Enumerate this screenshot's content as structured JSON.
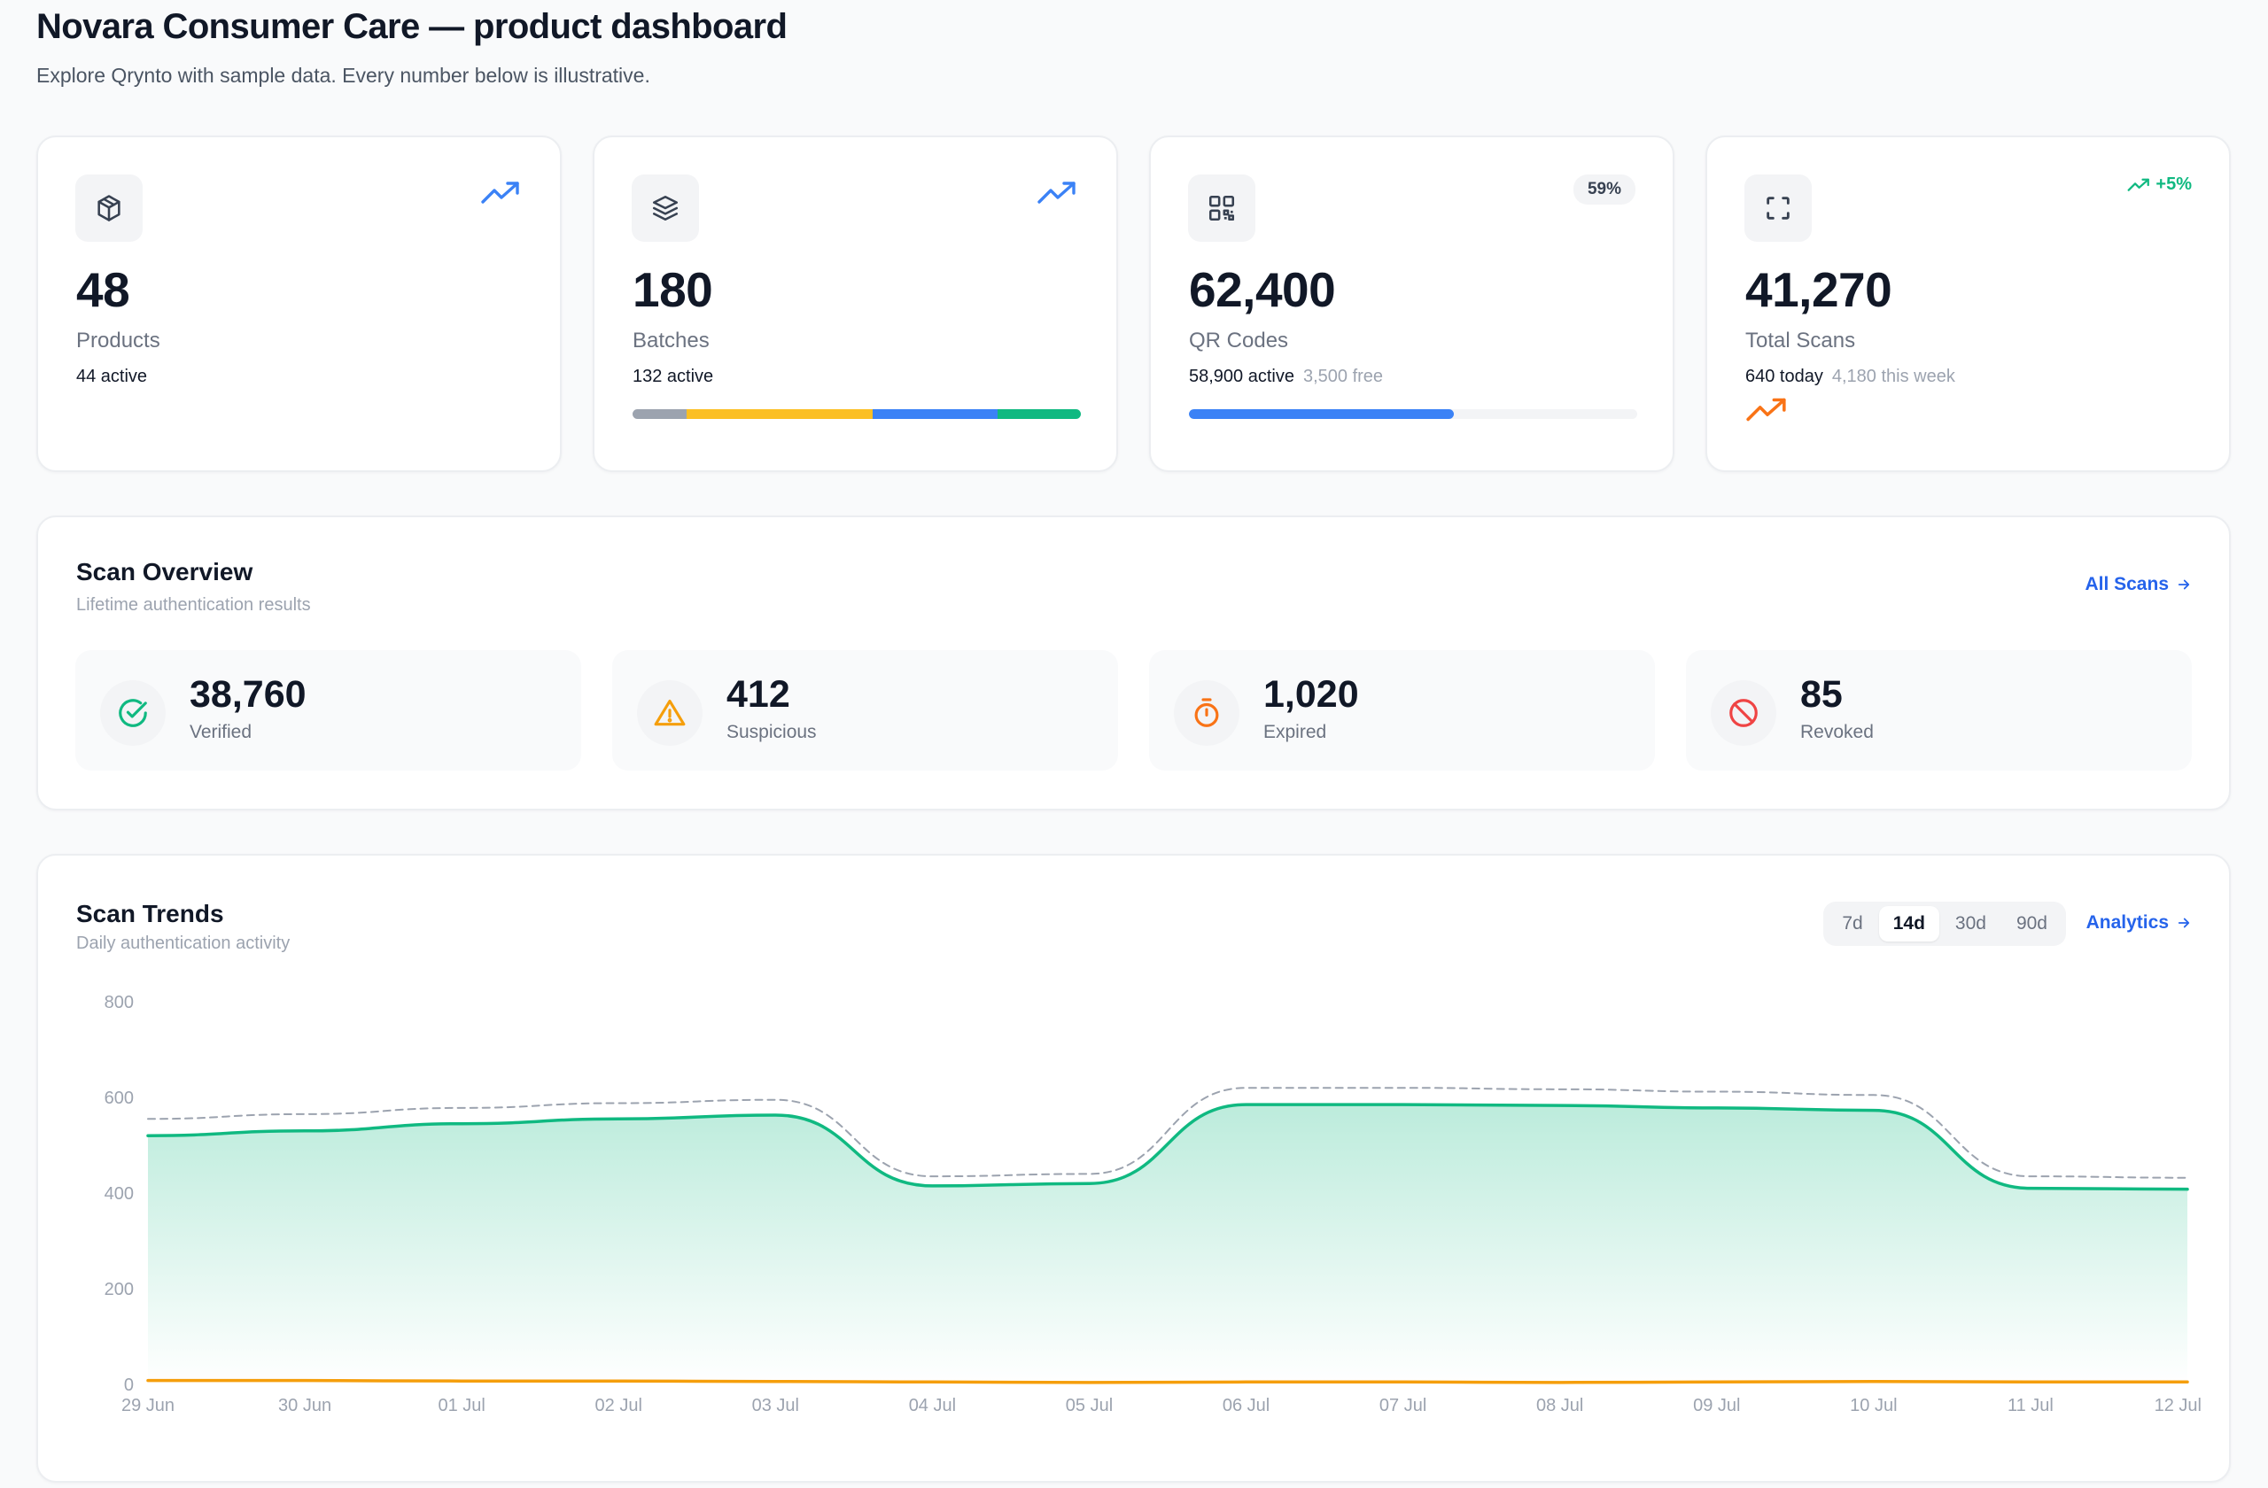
{
  "header": {
    "title": "Novara Consumer Care — product dashboard",
    "subtitle": "Explore Qrynto with sample data. Every number below is illustrative."
  },
  "stats": {
    "products": {
      "value": "48",
      "label": "Products",
      "sub": "44 active",
      "trend_icon": "trending-up-icon"
    },
    "batches": {
      "value": "180",
      "label": "Batches",
      "sub": "132 active",
      "trend_icon": "trending-up-icon",
      "segments": [
        {
          "name": "gray",
          "fraction": 0.12,
          "color": "#9ca3af"
        },
        {
          "name": "amber",
          "fraction": 0.415,
          "color": "#fbbf24"
        },
        {
          "name": "blue",
          "fraction": 0.28,
          "color": "#3b82f6"
        },
        {
          "name": "green",
          "fraction": 0.185,
          "color": "#10b981"
        }
      ]
    },
    "qr_codes": {
      "value": "62,400",
      "label": "QR Codes",
      "sub": "58,900 active",
      "sub_muted": "3,500 free",
      "badge": "59%",
      "progress": 0.59
    },
    "total_scans": {
      "value": "41,270",
      "label": "Total Scans",
      "sub": "640 today",
      "sub_muted": "4,180 this week",
      "delta": "+5%"
    }
  },
  "overview": {
    "title": "Scan Overview",
    "subtitle": "Lifetime authentication results",
    "link": "All Scans",
    "tiles": [
      {
        "value": "38,760",
        "label": "Verified",
        "icon": "check-circle-icon",
        "color": "#10b981"
      },
      {
        "value": "412",
        "label": "Suspicious",
        "icon": "warning-icon",
        "color": "#f59e0b"
      },
      {
        "value": "1,020",
        "label": "Expired",
        "icon": "timer-icon",
        "color": "#f97316"
      },
      {
        "value": "85",
        "label": "Revoked",
        "icon": "ban-icon",
        "color": "#ef4444"
      }
    ]
  },
  "trends": {
    "title": "Scan Trends",
    "subtitle": "Daily authentication activity",
    "ranges": [
      "7d",
      "14d",
      "30d",
      "90d"
    ],
    "active_range": "14d",
    "link": "Analytics"
  },
  "chart_data": {
    "type": "area",
    "x": [
      "29 Jun",
      "30 Jun",
      "01 Jul",
      "02 Jul",
      "03 Jul",
      "04 Jul",
      "05 Jul",
      "06 Jul",
      "07 Jul",
      "08 Jul",
      "09 Jul",
      "10 Jul",
      "11 Jul",
      "12 Jul"
    ],
    "y_ticks": [
      0,
      200,
      400,
      600,
      800
    ],
    "ylim": [
      0,
      800
    ],
    "grid": false,
    "series": [
      {
        "values": [
          520,
          530,
          545,
          555,
          563,
          415,
          420,
          585,
          585,
          583,
          578,
          573,
          410,
          408
        ],
        "color": "#10b981",
        "style": "area"
      },
      {
        "values": [
          555,
          565,
          578,
          588,
          595,
          435,
          440,
          620,
          620,
          617,
          612,
          605,
          435,
          432
        ],
        "color": "#9ca3af",
        "style": "dashed"
      },
      {
        "values": [
          8,
          8,
          7,
          7,
          6,
          5,
          4,
          5,
          5,
          4,
          5,
          6,
          5,
          5
        ],
        "color": "#f59e0b",
        "style": "line"
      }
    ]
  }
}
